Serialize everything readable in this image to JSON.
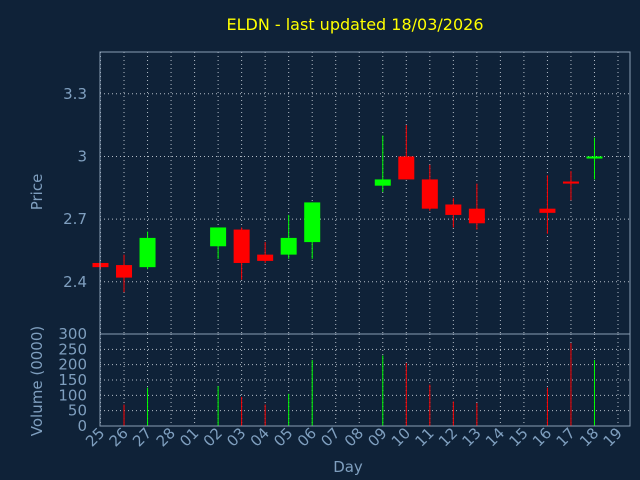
{
  "chart_data": [
    {
      "type": "candlestick",
      "title": "ELDN - last updated 18/03/2026",
      "ylabel": "Price",
      "ylim": [
        2.15,
        3.5
      ],
      "yticks": [
        "2.4",
        "2.7",
        "3",
        "3.3"
      ],
      "grid": true,
      "candles": [
        {
          "x": "25",
          "open": 2.49,
          "high": 2.49,
          "low": 2.46,
          "close": 2.47
        },
        {
          "x": "26",
          "open": 2.48,
          "high": 2.53,
          "low": 2.35,
          "close": 2.42
        },
        {
          "x": "27",
          "open": 2.47,
          "high": 2.64,
          "low": 2.46,
          "close": 2.61
        },
        {
          "x": "02",
          "open": 2.57,
          "high": 2.66,
          "low": 2.51,
          "close": 2.66
        },
        {
          "x": "03",
          "open": 2.65,
          "high": 2.66,
          "low": 2.41,
          "close": 2.49
        },
        {
          "x": "04",
          "open": 2.53,
          "high": 2.59,
          "low": 2.49,
          "close": 2.5
        },
        {
          "x": "05",
          "open": 2.53,
          "high": 2.72,
          "low": 2.51,
          "close": 2.61
        },
        {
          "x": "06",
          "open": 2.59,
          "high": 2.78,
          "low": 2.51,
          "close": 2.78
        },
        {
          "x": "09",
          "open": 2.86,
          "high": 3.1,
          "low": 2.83,
          "close": 2.89
        },
        {
          "x": "10",
          "open": 3.0,
          "high": 3.15,
          "low": 2.89,
          "close": 2.89
        },
        {
          "x": "11",
          "open": 2.89,
          "high": 2.96,
          "low": 2.74,
          "close": 2.75
        },
        {
          "x": "12",
          "open": 2.77,
          "high": 2.8,
          "low": 2.66,
          "close": 2.72
        },
        {
          "x": "13",
          "open": 2.75,
          "high": 2.87,
          "low": 2.65,
          "close": 2.68
        },
        {
          "x": "16",
          "open": 2.75,
          "high": 2.91,
          "low": 2.63,
          "close": 2.73
        },
        {
          "x": "17",
          "open": 2.88,
          "high": 2.93,
          "low": 2.79,
          "close": 2.87
        },
        {
          "x": "18",
          "open": 2.99,
          "high": 3.09,
          "low": 2.89,
          "close": 3.0
        }
      ],
      "colors": {
        "up": "#00ff00",
        "down": "#ff0000"
      }
    },
    {
      "type": "bar",
      "ylabel": "Volume (0000)",
      "xlabel": "Day",
      "ylim": [
        0,
        300
      ],
      "yticks": [
        "0",
        "50",
        "100",
        "150",
        "200",
        "250",
        "300"
      ],
      "categories": [
        "25",
        "26",
        "27",
        "28",
        "01",
        "02",
        "03",
        "04",
        "05",
        "06",
        "07",
        "08",
        "09",
        "10",
        "11",
        "12",
        "13",
        "14",
        "15",
        "16",
        "17",
        "18",
        "19"
      ],
      "values": [
        null,
        70,
        125,
        null,
        null,
        130,
        95,
        70,
        105,
        215,
        null,
        null,
        230,
        205,
        135,
        80,
        75,
        null,
        null,
        125,
        270,
        215,
        null
      ],
      "colors": [
        null,
        "#ff0000",
        "#00ff00",
        null,
        null,
        "#00ff00",
        "#ff0000",
        "#ff0000",
        "#00ff00",
        "#00ff00",
        null,
        null,
        "#00ff00",
        "#ff0000",
        "#ff0000",
        "#ff0000",
        "#ff0000",
        null,
        null,
        "#ff0000",
        "#ff0000",
        "#00ff00",
        null
      ]
    }
  ]
}
